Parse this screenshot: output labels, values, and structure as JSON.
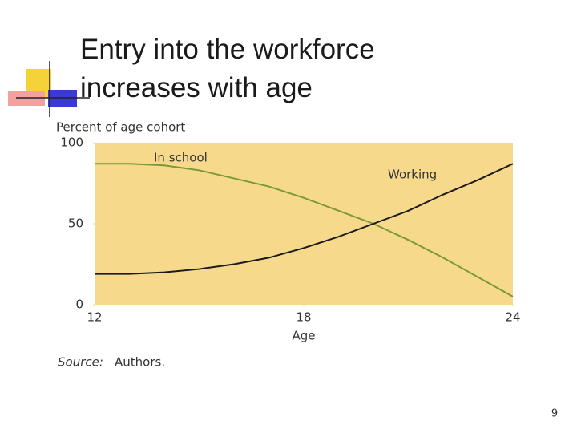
{
  "chart_data": {
    "type": "line",
    "title": "Entry into the workforce increases with age",
    "y_axis_label": "Percent of age cohort",
    "x_axis_label": "Age",
    "x": [
      12,
      13,
      14,
      15,
      16,
      17,
      18,
      19,
      20,
      21,
      22,
      23,
      24
    ],
    "series": [
      {
        "name": "In school",
        "color": "#7a9a3a",
        "values": [
          87,
          87,
          86,
          83,
          78,
          73,
          66,
          58,
          50,
          40,
          29,
          17,
          5
        ]
      },
      {
        "name": "Working",
        "color": "#1a1a1a",
        "values": [
          19,
          19,
          20,
          22,
          25,
          29,
          35,
          42,
          50,
          58,
          68,
          77,
          87
        ]
      }
    ],
    "xlim": [
      12,
      24
    ],
    "xticks": [
      12,
      18,
      24
    ],
    "ylim": [
      0,
      100
    ],
    "yticks": [
      0,
      50,
      100
    ],
    "background": "#f7d98c",
    "source_label": "Source:",
    "source_text": "Authors."
  },
  "page_number": "9"
}
